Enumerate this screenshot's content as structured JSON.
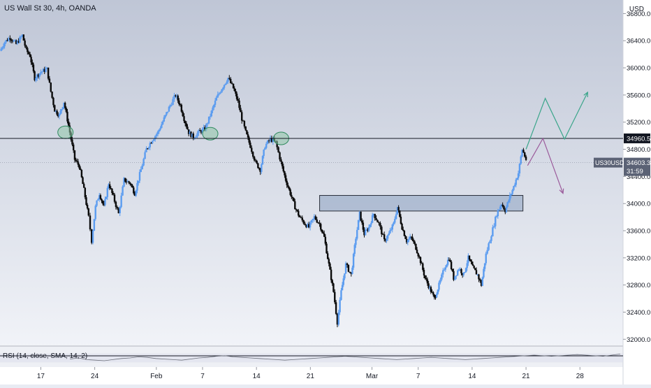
{
  "header": {
    "title": "US Wall St 30, 4h, OANDA",
    "currency": "USD"
  },
  "price_badges": {
    "level_label": "34960.5",
    "symbol_label": "US30USD",
    "last_price": "34603.3",
    "countdown": "31:59"
  },
  "indicator": {
    "label": "RSI (14, close, SMA, 14, 2)"
  },
  "colors": {
    "bull": "#5b9cf0",
    "bear": "#0a0a0a",
    "projection_up": "#3aa58a",
    "projection_down": "#9b5b9b",
    "zone_fill": "#8aa0c0",
    "circle_fill": "#8fc6a8"
  },
  "chart_data": {
    "type": "candlestick",
    "timeframe": "4h",
    "y_axis": {
      "ticks": [
        36800,
        36400,
        36000,
        35600,
        35200,
        34800,
        34400,
        34000,
        33600,
        33200,
        32800,
        32400,
        32000
      ],
      "tick_labels": [
        "36800.0",
        "36400.0",
        "36000.0",
        "35600.0",
        "35200.0",
        "34800.0",
        "34400.0",
        "34000.0",
        "33600.0",
        "33200.0",
        "32800.0",
        "32400.0",
        "32000.0"
      ],
      "range": [
        31900,
        37000
      ]
    },
    "x_axis": {
      "ticks": [
        {
          "label": "17",
          "day": 17
        },
        {
          "label": "24",
          "day": 24
        },
        {
          "label": "Feb",
          "day": 32
        },
        {
          "label": "7",
          "day": 38
        },
        {
          "label": "14",
          "day": 45
        },
        {
          "label": "21",
          "day": 52
        },
        {
          "label": "Mar",
          "day": 60
        },
        {
          "label": "7",
          "day": 66
        },
        {
          "label": "14",
          "day": 73
        },
        {
          "label": "21",
          "day": 80
        },
        {
          "label": "28",
          "day": 87
        }
      ],
      "range": [
        11.7,
        92.6
      ]
    },
    "path": [
      [
        11.7,
        36250
      ],
      [
        12.3,
        36380
      ],
      [
        13.0,
        36450
      ],
      [
        13.8,
        36350
      ],
      [
        14.6,
        36480
      ],
      [
        15.1,
        36260
      ],
      [
        15.6,
        36180
      ],
      [
        16.2,
        35850
      ],
      [
        17.0,
        35940
      ],
      [
        17.8,
        35980
      ],
      [
        18.3,
        35650
      ],
      [
        18.8,
        35380
      ],
      [
        19.4,
        35300
      ],
      [
        20.0,
        35500
      ],
      [
        20.6,
        35150
      ],
      [
        21.4,
        34650
      ],
      [
        22.0,
        34550
      ],
      [
        22.6,
        34200
      ],
      [
        23.2,
        33800
      ],
      [
        23.6,
        33450
      ],
      [
        24.1,
        33950
      ],
      [
        24.6,
        34150
      ],
      [
        25.2,
        33950
      ],
      [
        25.8,
        34300
      ],
      [
        26.4,
        34100
      ],
      [
        27.1,
        33850
      ],
      [
        27.8,
        34350
      ],
      [
        28.6,
        34300
      ],
      [
        29.2,
        34150
      ],
      [
        30.0,
        34500
      ],
      [
        30.7,
        34800
      ],
      [
        31.5,
        34950
      ],
      [
        32.2,
        35050
      ],
      [
        33.0,
        35250
      ],
      [
        33.8,
        35450
      ],
      [
        34.5,
        35600
      ],
      [
        35.1,
        35450
      ],
      [
        35.6,
        35250
      ],
      [
        36.2,
        35050
      ],
      [
        36.8,
        34980
      ],
      [
        37.5,
        35050
      ],
      [
        38.3,
        35100
      ],
      [
        39.0,
        35300
      ],
      [
        39.8,
        35550
      ],
      [
        40.5,
        35700
      ],
      [
        41.3,
        35850
      ],
      [
        42.0,
        35700
      ],
      [
        42.6,
        35500
      ],
      [
        43.1,
        35250
      ],
      [
        43.6,
        35050
      ],
      [
        44.2,
        34850
      ],
      [
        44.9,
        34600
      ],
      [
        45.5,
        34500
      ],
      [
        46.1,
        34850
      ],
      [
        46.8,
        34950
      ],
      [
        47.5,
        34900
      ],
      [
        48.2,
        34600
      ],
      [
        48.8,
        34350
      ],
      [
        49.4,
        34150
      ],
      [
        50.0,
        33950
      ],
      [
        50.6,
        33800
      ],
      [
        51.3,
        33700
      ],
      [
        51.8,
        33650
      ],
      [
        52.5,
        33800
      ],
      [
        53.2,
        33700
      ],
      [
        53.8,
        33500
      ],
      [
        54.4,
        33100
      ],
      [
        55.0,
        32700
      ],
      [
        55.5,
        32250
      ],
      [
        56.0,
        32700
      ],
      [
        56.6,
        33100
      ],
      [
        57.3,
        32950
      ],
      [
        57.9,
        33500
      ],
      [
        58.4,
        33850
      ],
      [
        59.0,
        33550
      ],
      [
        59.6,
        33650
      ],
      [
        60.2,
        33850
      ],
      [
        60.9,
        33700
      ],
      [
        61.6,
        33450
      ],
      [
        62.2,
        33550
      ],
      [
        62.8,
        33700
      ],
      [
        63.3,
        33950
      ],
      [
        63.9,
        33650
      ],
      [
        64.5,
        33450
      ],
      [
        65.1,
        33500
      ],
      [
        65.7,
        33350
      ],
      [
        66.3,
        33150
      ],
      [
        66.9,
        32900
      ],
      [
        67.5,
        32750
      ],
      [
        68.1,
        32600
      ],
      [
        68.7,
        32800
      ],
      [
        69.4,
        33050
      ],
      [
        70.0,
        33200
      ],
      [
        70.6,
        32900
      ],
      [
        71.3,
        33050
      ],
      [
        71.9,
        32950
      ],
      [
        72.5,
        33200
      ],
      [
        73.1,
        33050
      ],
      [
        73.7,
        32950
      ],
      [
        74.2,
        32800
      ],
      [
        74.8,
        33250
      ],
      [
        75.5,
        33550
      ],
      [
        76.2,
        33850
      ],
      [
        76.8,
        34000
      ],
      [
        77.3,
        33900
      ],
      [
        77.9,
        34100
      ],
      [
        78.4,
        34250
      ],
      [
        79.0,
        34450
      ],
      [
        79.5,
        34800
      ],
      [
        80.0,
        34650
      ]
    ],
    "horizontal_level": 34960.5,
    "last_price": 34603.3,
    "zone": {
      "x0": 53.2,
      "x1": 79.6,
      "y0": 33890,
      "y1": 34120
    },
    "circles": [
      {
        "day": 20.2,
        "price": 35050
      },
      {
        "day": 39.0,
        "price": 35030
      },
      {
        "day": 48.2,
        "price": 34960
      }
    ],
    "projection_up": [
      [
        80.0,
        34800
      ],
      [
        82.5,
        35550
      ],
      [
        85.0,
        34950
      ],
      [
        88.0,
        35640
      ]
    ],
    "projection_down": [
      [
        80.2,
        34560
      ],
      [
        82.2,
        34960
      ],
      [
        84.8,
        34150
      ]
    ],
    "rsi": {
      "values": [
        48,
        50,
        47,
        46,
        45,
        47,
        49,
        50,
        52,
        51,
        49,
        48,
        47,
        46,
        48,
        50,
        51,
        53,
        54,
        52,
        51,
        50,
        49,
        48,
        47,
        46,
        47,
        48,
        49,
        50,
        51,
        52,
        53,
        52,
        51,
        50,
        49,
        48,
        47,
        48,
        49,
        50,
        51,
        50,
        49,
        48,
        47,
        48,
        49,
        50,
        51,
        52,
        53,
        54,
        55,
        54,
        53,
        54,
        55,
        56,
        55,
        54,
        53,
        55,
        57
      ]
    }
  }
}
